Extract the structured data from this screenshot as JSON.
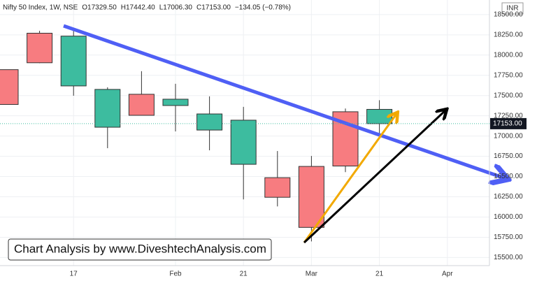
{
  "chart_data": {
    "type": "candlestick",
    "header": [
      "Nifty 50 Index, 1W, NSE",
      "O17329.50",
      "H17442.40",
      "L17006.30",
      "C17153.00",
      "−134.05 (−0.78%)"
    ],
    "currency": "INR",
    "annotation": "Chart Analysis by www.DiveshtechAnalysis.com",
    "categories": [
      null,
      null,
      "17",
      null,
      null,
      "Feb",
      null,
      "21",
      null,
      "Mar",
      null,
      "21",
      null,
      "Apr",
      null
    ],
    "open": [
      17390,
      17905,
      18234,
      17576,
      17256,
      17455,
      17273,
      17196,
      16244,
      15872,
      16630,
      17329.5,
      null,
      null,
      null
    ],
    "high": [
      17820,
      18300,
      18337,
      17602,
      17801,
      17645,
      17490,
      17360,
      16815,
      16754,
      17340,
      17442.4,
      null,
      null,
      null
    ],
    "low": [
      17390,
      17900,
      17498,
      16850,
      17256,
      17057,
      16824,
      16218,
      16131,
      15699,
      16555,
      17006.3,
      null,
      null,
      null
    ],
    "close": [
      17820,
      18270,
      17619,
      17109,
      17516,
      17377,
      17074,
      16651,
      16486,
      16625,
      17300,
      17153,
      null,
      null,
      null
    ],
    "up_color": "#f77c80",
    "down_color": "#3dbc9f",
    "last_price": {
      "value": 17153,
      "label": "17153.00"
    },
    "ylim": [
      15400,
      18680
    ],
    "yticks": [
      {
        "value": 15500,
        "label": "15500.00"
      },
      {
        "value": 15750,
        "label": "15750.00"
      },
      {
        "value": 16000,
        "label": "16000.00"
      },
      {
        "value": 16250,
        "label": "16250.00"
      },
      {
        "value": 16500,
        "label": "16500.00"
      },
      {
        "value": 16750,
        "label": "16750.00"
      },
      {
        "value": 17000,
        "label": "17000.00"
      },
      {
        "value": 17250,
        "label": "17250.00"
      },
      {
        "value": 17500,
        "label": "17500.00"
      },
      {
        "value": 17750,
        "label": "17750.00"
      },
      {
        "value": 18000,
        "label": "18000.00"
      },
      {
        "value": 18250,
        "label": "18250.00"
      },
      {
        "value": 18500,
        "label": "18500.00"
      }
    ],
    "grid": true
  }
}
